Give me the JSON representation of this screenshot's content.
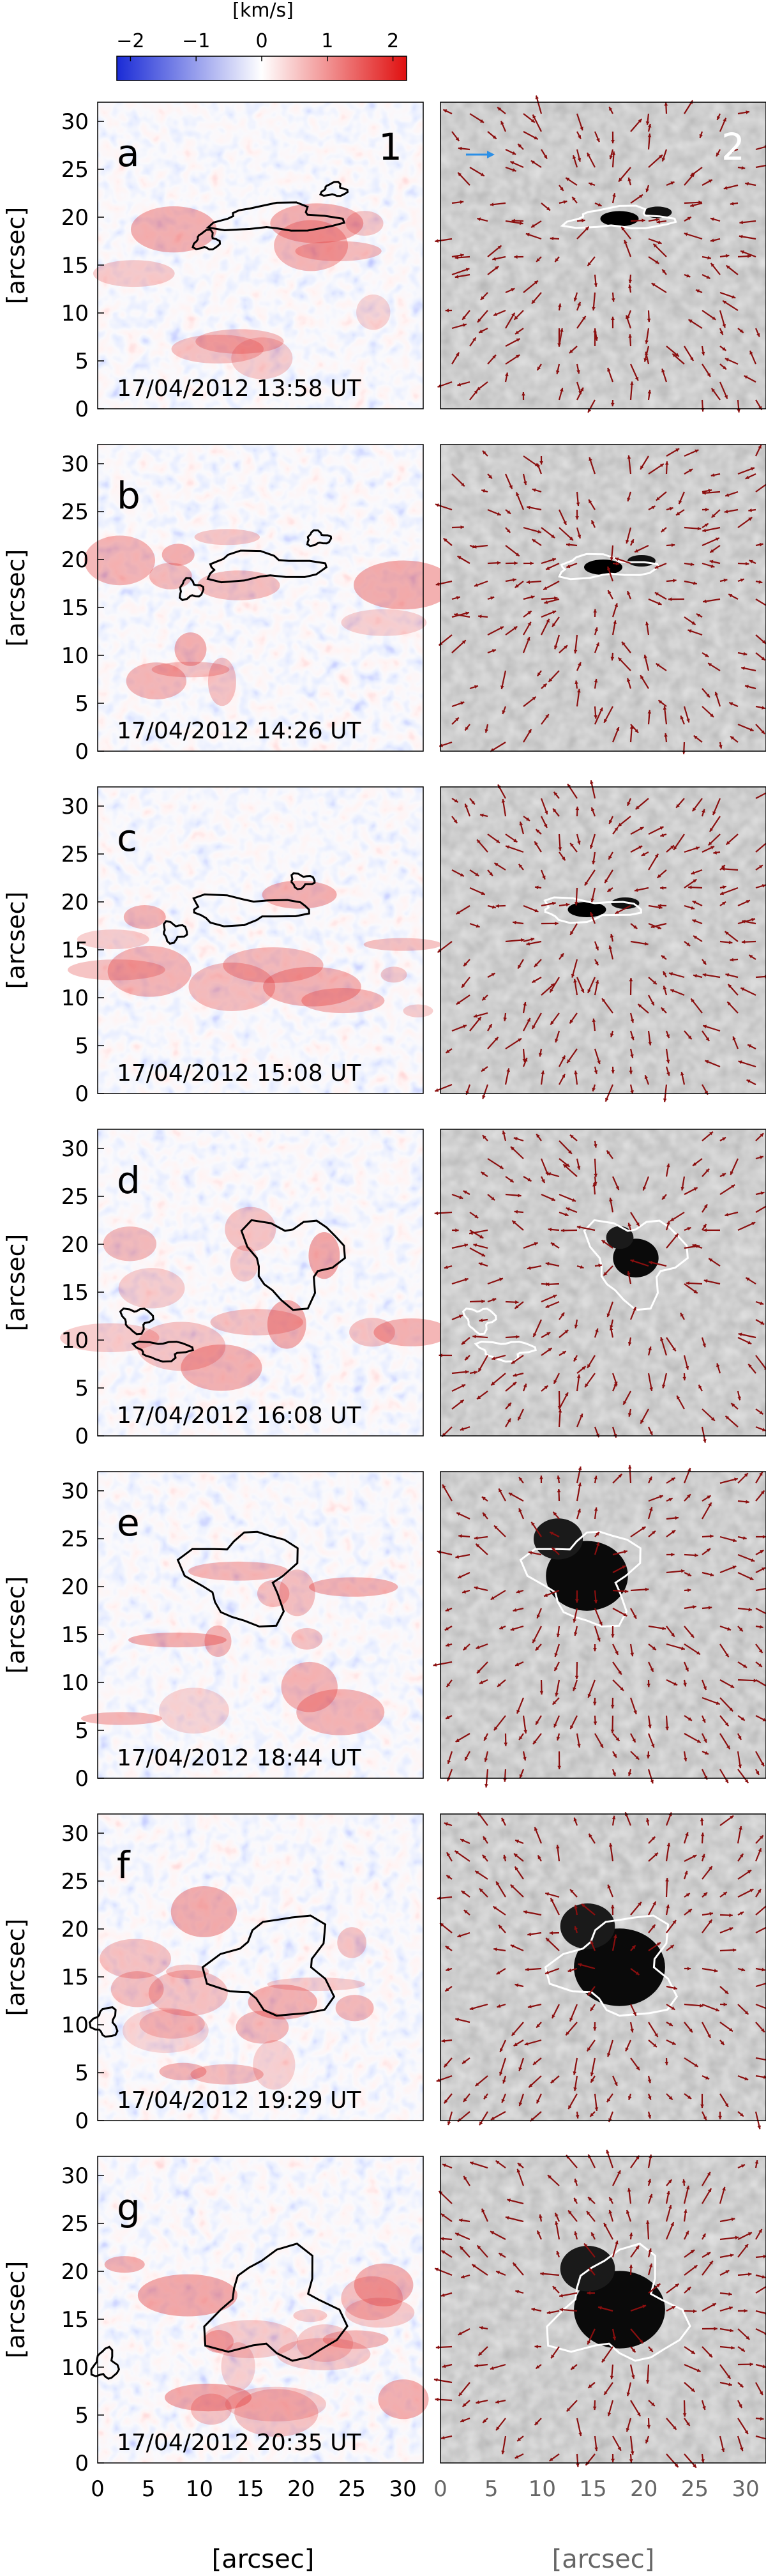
{
  "colorbar": {
    "unit": "[km/s]",
    "ticks": [
      "−2",
      "−1",
      "0",
      "1",
      "2"
    ],
    "colors": {
      "neg": "#1a2bd6",
      "zero": "#ffffff",
      "pos": "#e01010"
    }
  },
  "column_labels": {
    "left": "1",
    "right": "2"
  },
  "axes": {
    "y_ticks": [
      "0",
      "5",
      "10",
      "15",
      "20",
      "25",
      "30"
    ],
    "x_ticks": [
      "0",
      "5",
      "10",
      "15",
      "20",
      "25",
      "30"
    ],
    "ylabel": "[arcsec]",
    "xlabel_left": "[arcsec]",
    "xlabel_right": "[arcsec]"
  },
  "rows": [
    {
      "letter": "a",
      "timestamp": "17/04/2012   13:58 UT"
    },
    {
      "letter": "b",
      "timestamp": "17/04/2012   14:26 UT"
    },
    {
      "letter": "c",
      "timestamp": "17/04/2012   15:08 UT"
    },
    {
      "letter": "d",
      "timestamp": "17/04/2012   16:08 UT"
    },
    {
      "letter": "e",
      "timestamp": "17/04/2012   18:44 UT"
    },
    {
      "letter": "f",
      "timestamp": "17/04/2012   19:29 UT"
    },
    {
      "letter": "g",
      "timestamp": "17/04/2012   20:35 UT"
    }
  ],
  "colors": {
    "arrow": "#8b0f0f",
    "reference_arrow": "#2b8fe6",
    "contour_left": "#000000",
    "contour_right": "#ffffff"
  }
}
